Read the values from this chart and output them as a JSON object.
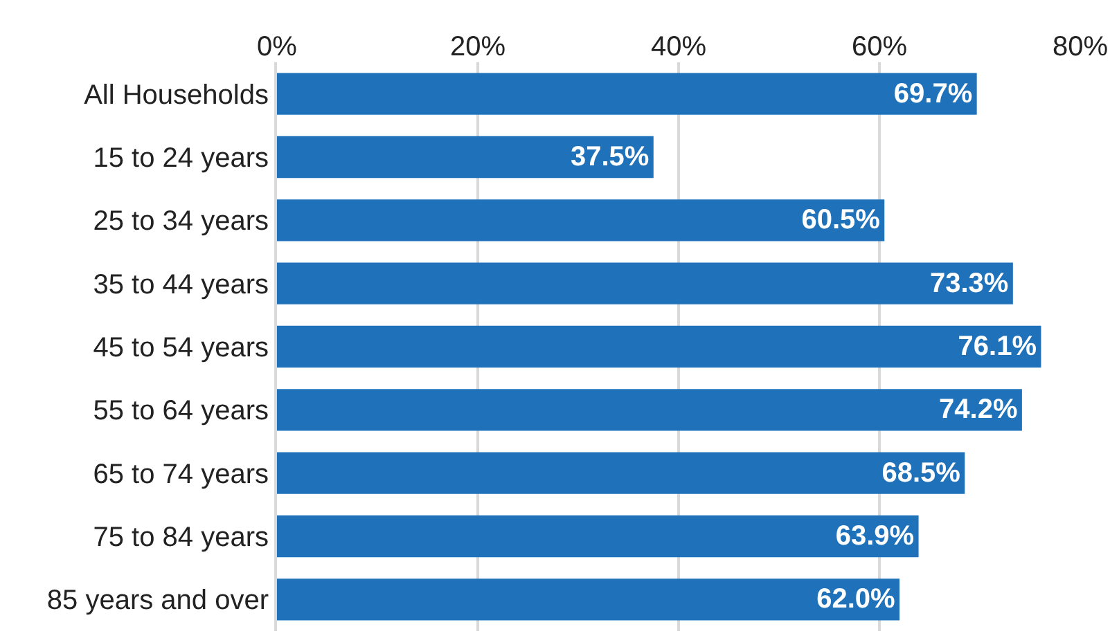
{
  "chart_data": {
    "type": "bar",
    "orientation": "horizontal",
    "categories": [
      "All Households",
      "15 to 24 years",
      "25 to 34 years",
      "35 to 44 years",
      "45 to 54 years",
      "55 to 64 years",
      "65 to 74 years",
      "75 to 84 years",
      "85 years and over"
    ],
    "values": [
      69.7,
      37.5,
      60.5,
      73.3,
      76.1,
      74.2,
      68.5,
      63.9,
      62.0
    ],
    "value_labels": [
      "69.7%",
      "37.5%",
      "60.5%",
      "73.3%",
      "76.1%",
      "74.2%",
      "68.5%",
      "63.9%",
      "62.0%"
    ],
    "color": "#1f72ba",
    "xlim": [
      0,
      80
    ],
    "xticks": [
      {
        "value": 0,
        "label": "0%"
      },
      {
        "value": 20,
        "label": "20%"
      },
      {
        "value": 40,
        "label": "40%"
      },
      {
        "value": 60,
        "label": "60%"
      },
      {
        "value": 80,
        "label": "80%"
      }
    ],
    "grid": "x"
  }
}
